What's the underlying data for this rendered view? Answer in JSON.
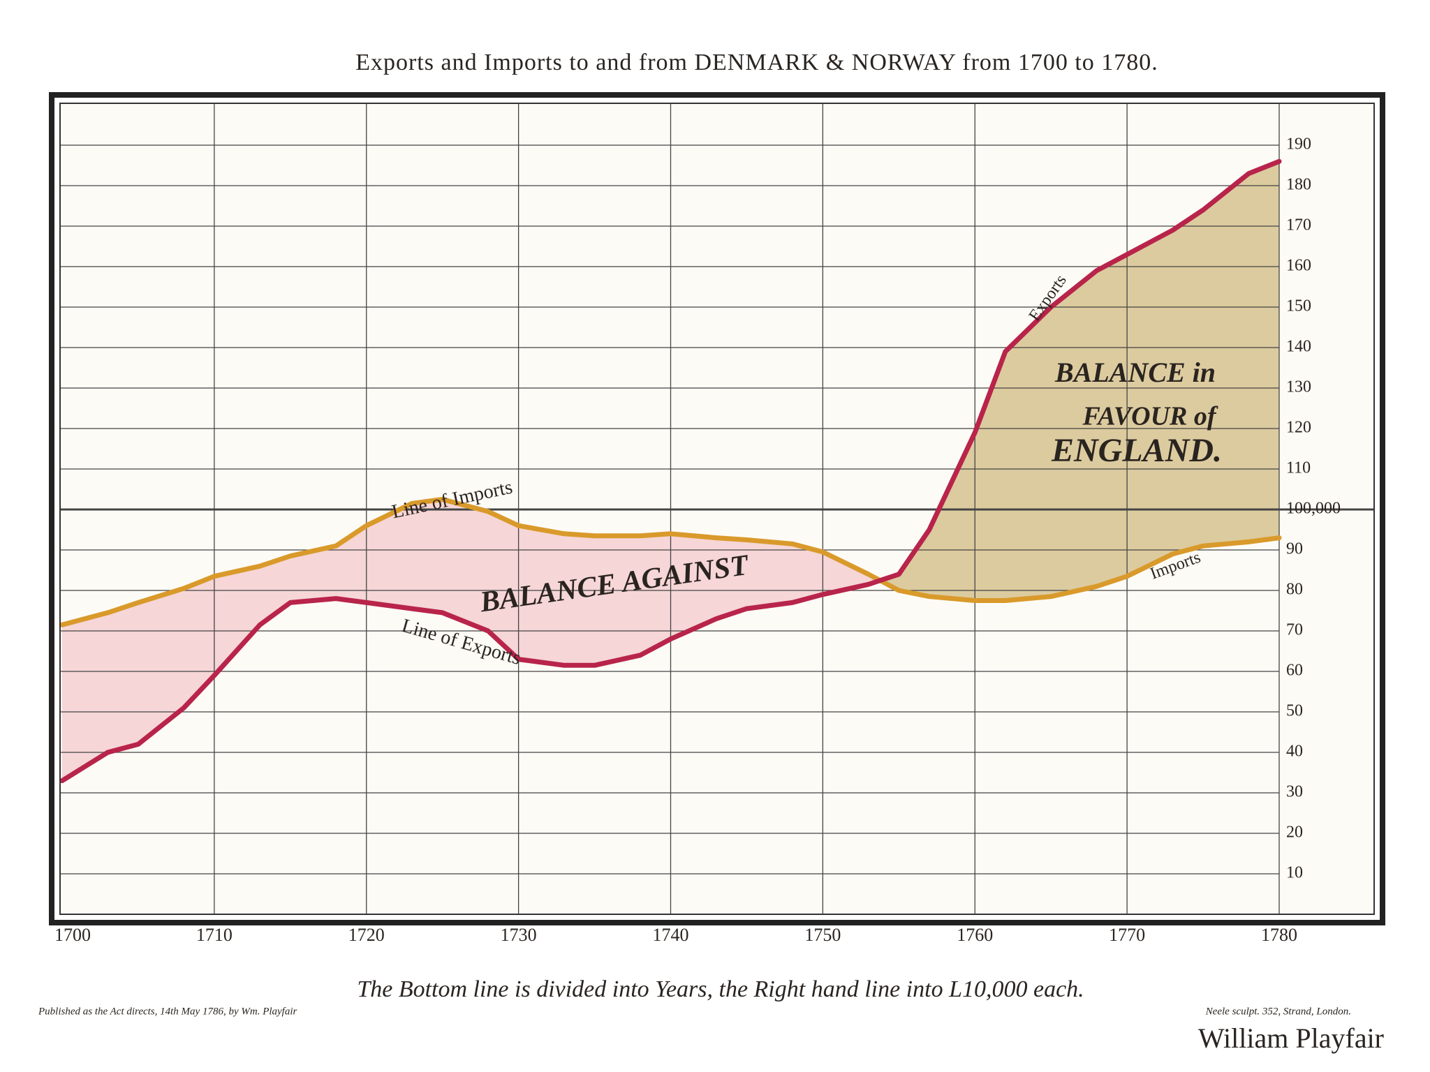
{
  "chart_data": {
    "type": "line",
    "title": "Exports and Imports to and from DENMARK & NORWAY from 1700 to 1780.",
    "x": [
      1700,
      1703,
      1705,
      1708,
      1710,
      1713,
      1715,
      1718,
      1720,
      1723,
      1725,
      1728,
      1730,
      1733,
      1735,
      1738,
      1740,
      1743,
      1745,
      1748,
      1750,
      1753,
      1755,
      1757,
      1760,
      1762,
      1765,
      1768,
      1770,
      1773,
      1775,
      1778,
      1780
    ],
    "series": [
      {
        "name": "Imports",
        "color": "#d99a2b",
        "values": [
          71.5,
          74.5,
          77,
          80.5,
          83.5,
          86,
          88.5,
          91,
          96,
          101.5,
          102.5,
          99.5,
          96,
          94,
          93.5,
          93.5,
          94,
          93,
          92.5,
          91.5,
          89.5,
          84,
          80,
          78.5,
          77.5,
          77.5,
          78.5,
          81,
          83.5,
          89,
          91,
          92,
          93
        ]
      },
      {
        "name": "Exports",
        "color": "#b8244a",
        "values": [
          33,
          40,
          42,
          51,
          59,
          71.5,
          77,
          78,
          77,
          75.5,
          74.5,
          70,
          63,
          61.5,
          61.5,
          64,
          68,
          73,
          75.5,
          77,
          79,
          81.5,
          84,
          95,
          119,
          139,
          150,
          159,
          163,
          169,
          174,
          183,
          186
        ]
      }
    ],
    "annotations": [
      "Line of Imports",
      "Line of Exports",
      "BALANCE AGAINST",
      "BALANCE in",
      "FAVOUR of",
      "ENGLAND."
    ],
    "xlim": [
      1700,
      1780
    ],
    "xticks": [
      1700,
      1710,
      1720,
      1730,
      1740,
      1750,
      1760,
      1770,
      1780
    ],
    "ylim": [
      0,
      200
    ],
    "yticks": [
      10,
      20,
      30,
      40,
      50,
      60,
      70,
      80,
      90,
      {
        "value": 100,
        "label": "100,000"
      },
      110,
      120,
      130,
      140,
      150,
      160,
      170,
      180,
      190
    ],
    "grid": true,
    "note": "The Bottom line is divided into Years, the Right hand line into L10,000 each.",
    "publisher": "Published as the Act directs, 14th May 1786, by Wm. Playfair",
    "engraver": "Neele sculpt. 352, Strand, London.",
    "credit": "William Playfair"
  }
}
